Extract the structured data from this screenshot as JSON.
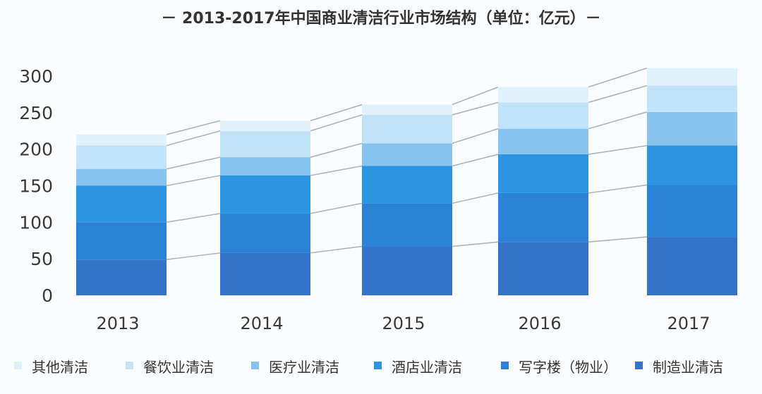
{
  "chart_data": {
    "type": "bar",
    "stacked": true,
    "title": "－ 2013-2017年中国商业清洁行业市场结构（单位：亿元）－",
    "xlabel": "",
    "ylabel": "",
    "ylim": [
      0,
      300
    ],
    "yticks": [
      "0",
      "50",
      "100",
      "150",
      "200",
      "250",
      "300"
    ],
    "categories": [
      "2013",
      "2014",
      "2015",
      "2016",
      "2017"
    ],
    "legend_position": "bottom",
    "series": [
      {
        "name": "制造业清洁",
        "color": "#3474c8",
        "values": [
          49,
          58,
          67,
          73,
          80
        ]
      },
      {
        "name": "写字楼（物业）",
        "color": "#2c82d6",
        "values": [
          51,
          54,
          59,
          67,
          71
        ]
      },
      {
        "name": "酒店业清洁",
        "color": "#2b95e2",
        "values": [
          50,
          52,
          51,
          53,
          54
        ]
      },
      {
        "name": "医疗业清洁",
        "color": "#88c3f0",
        "values": [
          23,
          25,
          31,
          35,
          46
        ]
      },
      {
        "name": "餐饮业清洁",
        "color": "#c2e2f8",
        "values": [
          32,
          36,
          39,
          36,
          36
        ]
      },
      {
        "name": "其他清洁",
        "color": "#dff1fb",
        "values": [
          15,
          14,
          14,
          21,
          24
        ]
      }
    ],
    "legend_order": [
      "其他清洁",
      "餐饮业清洁",
      "医疗业清洁",
      "酒店业清洁",
      "写字楼（物业）",
      "制造业清洁"
    ]
  }
}
